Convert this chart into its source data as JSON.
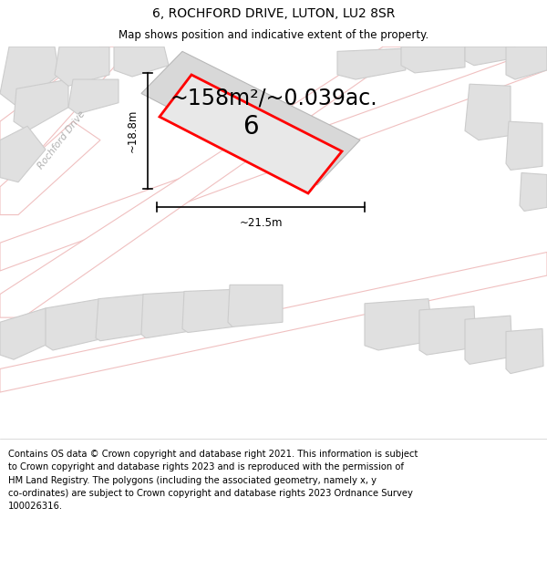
{
  "title": "6, ROCHFORD DRIVE, LUTON, LU2 8SR",
  "subtitle": "Map shows position and indicative extent of the property.",
  "area_text": "~158m²/~0.039ac.",
  "number_label": "6",
  "dim_horizontal": "~21.5m",
  "dim_vertical": "~18.8m",
  "road_label": "Rochford Drive",
  "footer_text": "Contains OS data © Crown copyright and database right 2021. This information is subject\nto Crown copyright and database rights 2023 and is reproduced with the permission of\nHM Land Registry. The polygons (including the associated geometry, namely x, y\nco-ordinates) are subject to Crown copyright and database rights 2023 Ordnance Survey\n100026316.",
  "bg_color": "#f8f8f8",
  "map_bg": "#efefef",
  "plot_edge": "#ff0000",
  "road_color": "#f0c0c0",
  "building_fill": "#e0e0e0",
  "building_edge": "#cccccc",
  "title_fontsize": 10,
  "subtitle_fontsize": 8.5,
  "area_fontsize": 17,
  "number_fontsize": 20,
  "footer_fontsize": 7.2
}
